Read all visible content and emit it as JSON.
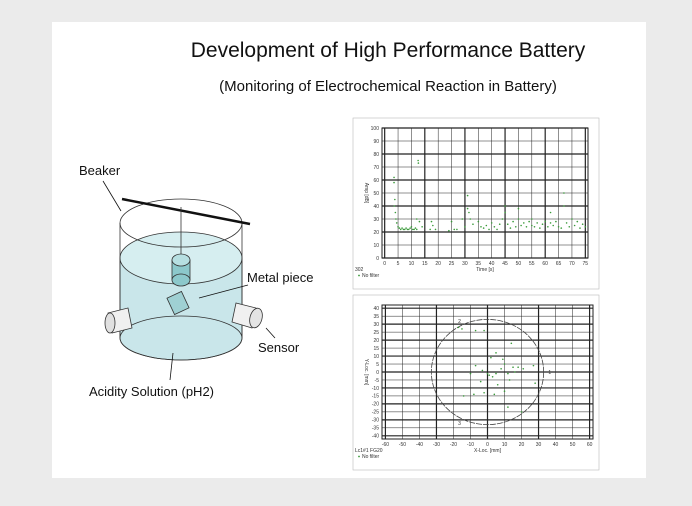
{
  "slide": {
    "title": "Development of High Performance Battery",
    "subtitle": "(Monitoring of Electrochemical Reaction in Battery)"
  },
  "diagram": {
    "labels": {
      "beaker": "Beaker",
      "metal_piece": "Metal piece",
      "sensor": "Sensor",
      "solution": "Acidity  Solution (pH2)"
    },
    "colors": {
      "water": "#c9e6ea",
      "metal": "#9fd0d3"
    }
  },
  "chart_data": [
    {
      "type": "scatter",
      "xlabel": "Time [s]",
      "ylabel": "Amp [dB]",
      "corner_label": "302",
      "legend": "No filter",
      "legend_placement": "bottom-left",
      "xlim": [
        -1,
        76
      ],
      "ylim": [
        0,
        100
      ],
      "xticks": [
        0,
        5,
        10,
        15,
        20,
        25,
        30,
        35,
        40,
        45,
        50,
        55,
        60,
        65,
        70,
        75
      ],
      "yticks": [
        0,
        10,
        20,
        30,
        40,
        50,
        60,
        70,
        80,
        90,
        100
      ],
      "grid": true,
      "color": "#3a9a3a",
      "points": [
        [
          3.5,
          62
        ],
        [
          3.5,
          58
        ],
        [
          3.8,
          45
        ],
        [
          3.6,
          40
        ],
        [
          4,
          35
        ],
        [
          4.2,
          30
        ],
        [
          4.5,
          27
        ],
        [
          5,
          24
        ],
        [
          5.5,
          23
        ],
        [
          6,
          22
        ],
        [
          6.5,
          23
        ],
        [
          7,
          22
        ],
        [
          7.5,
          22
        ],
        [
          8,
          23
        ],
        [
          8.5,
          22
        ],
        [
          9,
          22
        ],
        [
          9.5,
          23
        ],
        [
          10,
          24
        ],
        [
          10.5,
          22
        ],
        [
          11,
          22
        ],
        [
          11.5,
          23
        ],
        [
          12,
          22
        ],
        [
          12.5,
          75
        ],
        [
          12.6,
          73
        ],
        [
          12,
          30
        ],
        [
          13,
          28
        ],
        [
          14,
          24
        ],
        [
          17,
          22
        ],
        [
          17.5,
          28
        ],
        [
          18,
          25
        ],
        [
          19,
          22
        ],
        [
          24,
          21
        ],
        [
          25,
          28
        ],
        [
          26,
          22
        ],
        [
          27,
          22
        ],
        [
          29,
          30
        ],
        [
          30,
          24
        ],
        [
          31,
          38
        ],
        [
          31,
          48
        ],
        [
          31.5,
          35
        ],
        [
          32,
          30
        ],
        [
          33,
          26
        ],
        [
          35,
          28
        ],
        [
          36,
          24
        ],
        [
          37,
          23
        ],
        [
          38,
          25
        ],
        [
          39,
          22
        ],
        [
          40,
          27
        ],
        [
          41,
          24
        ],
        [
          42,
          22
        ],
        [
          43,
          26
        ],
        [
          44,
          30
        ],
        [
          45,
          35
        ],
        [
          45,
          40
        ],
        [
          46,
          26
        ],
        [
          47,
          23
        ],
        [
          48,
          28
        ],
        [
          49,
          24
        ],
        [
          50,
          30
        ],
        [
          50,
          38
        ],
        [
          51,
          25
        ],
        [
          52,
          27
        ],
        [
          53,
          24
        ],
        [
          54,
          28
        ],
        [
          55,
          30
        ],
        [
          55,
          25
        ],
        [
          56,
          24
        ],
        [
          57,
          27
        ],
        [
          58,
          23
        ],
        [
          59,
          26
        ],
        [
          60,
          28
        ],
        [
          61,
          24
        ],
        [
          62,
          35
        ],
        [
          62,
          27
        ],
        [
          63,
          25
        ],
        [
          64,
          28
        ],
        [
          65,
          24
        ],
        [
          66,
          23
        ],
        [
          67,
          40
        ],
        [
          67,
          50
        ],
        [
          68,
          27
        ],
        [
          69,
          24
        ],
        [
          70,
          30
        ],
        [
          71,
          25
        ],
        [
          72,
          28
        ],
        [
          73,
          23
        ],
        [
          74,
          26
        ],
        [
          75,
          24
        ]
      ]
    },
    {
      "type": "scatter",
      "xlabel": "X-Loc. [mm]",
      "ylabel": "Y-Loc. [mm]",
      "corner_label": "Lc1#1 FG20",
      "legend": "No filter",
      "legend_placement": "bottom-left",
      "xlim": [
        -62,
        62
      ],
      "ylim": [
        -42,
        42
      ],
      "xticks": [
        -60,
        -50,
        -40,
        -30,
        -20,
        -10,
        0,
        10,
        20,
        30,
        40,
        50,
        60
      ],
      "yticks": [
        40,
        35,
        30,
        25,
        20,
        15,
        10,
        5,
        0,
        -5,
        -10,
        -15,
        -20,
        -25,
        -30,
        -35,
        -40
      ],
      "grid": true,
      "color": "#3a9a3a",
      "circle_radius": 33,
      "sensors": [
        {
          "label": "1",
          "x": 34,
          "y": 0
        },
        {
          "label": "2",
          "x": -19,
          "y": 32
        },
        {
          "label": "3",
          "x": -19,
          "y": -32
        }
      ],
      "points": [
        [
          -17,
          28
        ],
        [
          -15,
          27
        ],
        [
          -7,
          26
        ],
        [
          -2,
          26
        ],
        [
          14,
          18
        ],
        [
          5,
          12
        ],
        [
          2,
          9
        ],
        [
          9,
          8
        ],
        [
          10,
          5
        ],
        [
          15,
          3
        ],
        [
          -7,
          4
        ],
        [
          -3,
          1
        ],
        [
          0,
          -1
        ],
        [
          1,
          -2
        ],
        [
          3,
          -3
        ],
        [
          5,
          -1
        ],
        [
          8,
          2
        ],
        [
          12,
          -1
        ],
        [
          13,
          -5
        ],
        [
          16,
          0
        ],
        [
          18,
          3
        ],
        [
          21,
          2
        ],
        [
          27,
          4
        ],
        [
          -10,
          -1
        ],
        [
          -4,
          -6
        ],
        [
          6,
          -8
        ],
        [
          10,
          -12
        ],
        [
          -2,
          -13
        ],
        [
          4,
          -14
        ],
        [
          -8,
          -14
        ],
        [
          12,
          -22
        ],
        [
          20,
          -25
        ],
        [
          -14,
          -15
        ],
        [
          28,
          -7
        ]
      ]
    }
  ]
}
